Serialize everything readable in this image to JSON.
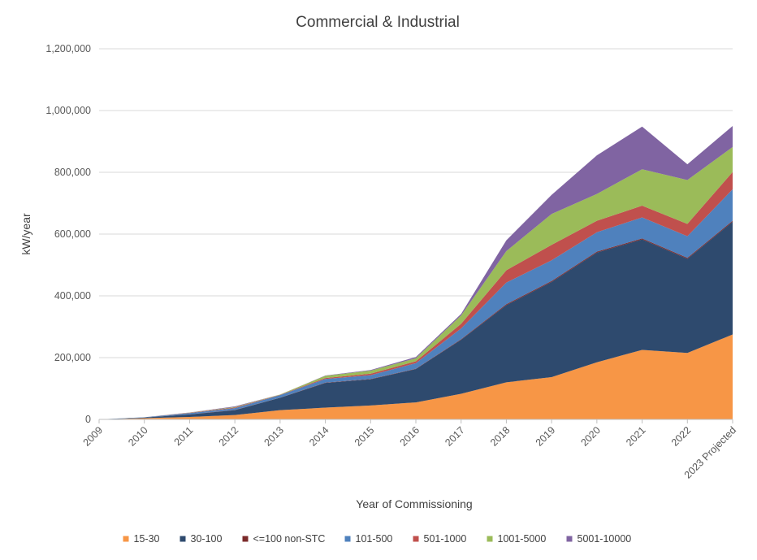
{
  "chart_data": {
    "type": "area",
    "stacked": true,
    "title": "Commercial & Industrial",
    "xlabel": "Year of Commissioning",
    "ylabel": "kW/year",
    "ylim": [
      0,
      1200000
    ],
    "yticks": [
      0,
      200000,
      400000,
      600000,
      800000,
      1000000,
      1200000
    ],
    "ytick_labels": [
      "0",
      "200,000",
      "400,000",
      "600,000",
      "800,000",
      "1,000,000",
      "1,200,000"
    ],
    "grid": "horizontal",
    "legend_position": "bottom",
    "categories": [
      "2009",
      "2010",
      "2011",
      "2012",
      "2013",
      "2014",
      "2015",
      "2016",
      "2017",
      "2018",
      "2019",
      "2020",
      "2021",
      "2022",
      "2023 Projected"
    ],
    "series": [
      {
        "name": "15-30",
        "color": "#F79646",
        "values": [
          0,
          4000,
          8000,
          14000,
          30000,
          38000,
          45000,
          55000,
          83000,
          120000,
          137000,
          185000,
          225000,
          215000,
          275000
        ]
      },
      {
        "name": "30-100",
        "color": "#2E4A6E",
        "values": [
          0,
          2000,
          8000,
          16000,
          40000,
          80000,
          85000,
          108000,
          175000,
          250000,
          308000,
          355000,
          358000,
          305000,
          365000
        ]
      },
      {
        "name": "<=100 non-STC",
        "color": "#7B2A2A",
        "values": [
          0,
          0,
          500,
          500,
          500,
          1000,
          1000,
          1000,
          1500,
          3000,
          3000,
          3000,
          3000,
          3000,
          3000
        ]
      },
      {
        "name": "101-500",
        "color": "#4F81BD",
        "values": [
          0,
          1000,
          4000,
          6000,
          8000,
          12000,
          12000,
          18000,
          35000,
          70000,
          67000,
          63000,
          68000,
          70000,
          102000
        ]
      },
      {
        "name": "501-1000",
        "color": "#C0504D",
        "values": [
          0,
          0,
          1000,
          2000,
          1000,
          3000,
          5000,
          6000,
          15000,
          40000,
          50000,
          37000,
          38000,
          40000,
          56000
        ]
      },
      {
        "name": "1001-5000",
        "color": "#9BBB59",
        "values": [
          0,
          0,
          500,
          1500,
          1000,
          7000,
          10000,
          10000,
          27000,
          62000,
          100000,
          87000,
          118000,
          142000,
          81000
        ]
      },
      {
        "name": "5001-10000",
        "color": "#8064A2",
        "values": [
          0,
          0,
          500,
          2000,
          0,
          1000,
          2000,
          4000,
          5000,
          35000,
          62000,
          125000,
          138000,
          51000,
          68000
        ]
      }
    ]
  }
}
